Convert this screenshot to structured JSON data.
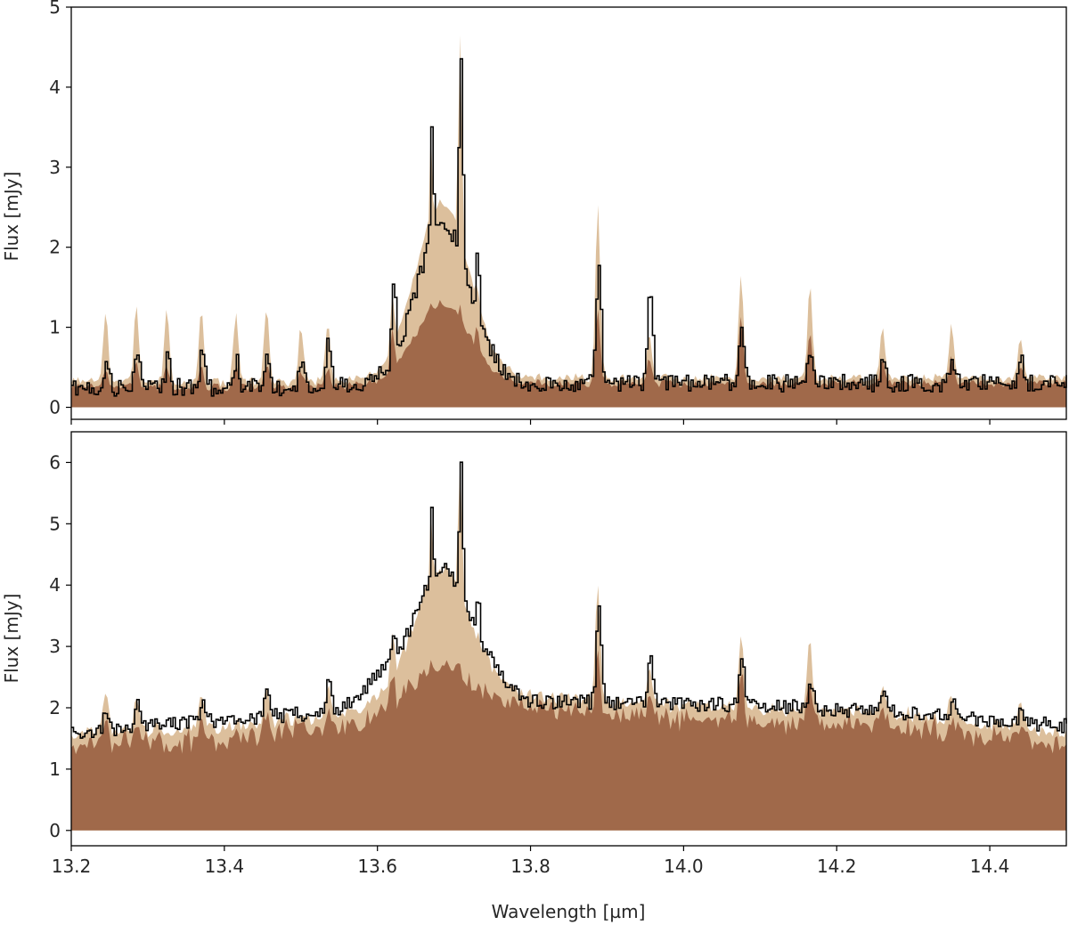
{
  "chart_data": [
    {
      "type": "area",
      "panel": "top",
      "ylabel": "Flux [mJy]",
      "xlabel": "",
      "xlim": [
        13.2,
        14.5
      ],
      "ylim": [
        -0.15,
        5.0
      ],
      "yticks": [
        0,
        1,
        2,
        3,
        4,
        5
      ],
      "xticks": [
        13.2,
        13.4,
        13.6,
        13.8,
        14.0,
        14.2,
        14.4
      ],
      "x_tick_labels_visible": false,
      "grid": false,
      "legend": "none",
      "colors": {
        "light_fill": "#dcbf9c",
        "dark_fill": "#a0694a",
        "line": "#000000"
      },
      "continuum_anchors": {
        "x": [
          13.2,
          13.5,
          13.6,
          13.7,
          13.8,
          14.0,
          14.2,
          14.5
        ],
        "y": [
          0.25,
          0.25,
          0.28,
          0.3,
          0.3,
          0.3,
          0.3,
          0.3
        ]
      },
      "band": {
        "center": 13.685,
        "width": 0.05,
        "light_peak": 2.2,
        "dark_peak": 1.0
      },
      "peaks": [
        {
          "x": 13.245,
          "light": 1.15,
          "dark": 0.5,
          "observed": 0.55
        },
        {
          "x": 13.285,
          "light": 1.2,
          "dark": 0.55,
          "observed": 0.7
        },
        {
          "x": 13.325,
          "light": 1.15,
          "dark": 0.5,
          "observed": 0.6
        },
        {
          "x": 13.37,
          "light": 1.15,
          "dark": 0.5,
          "observed": 0.75
        },
        {
          "x": 13.415,
          "light": 1.1,
          "dark": 0.5,
          "observed": 0.6
        },
        {
          "x": 13.455,
          "light": 1.2,
          "dark": 0.55,
          "observed": 0.7
        },
        {
          "x": 13.5,
          "light": 0.95,
          "dark": 0.45,
          "observed": 0.55
        },
        {
          "x": 13.535,
          "light": 1.0,
          "dark": 0.5,
          "observed": 0.8
        },
        {
          "x": 13.62,
          "light": 1.4,
          "dark": 1.0,
          "observed": 1.65
        },
        {
          "x": 13.67,
          "light": 3.5,
          "dark": 1.3,
          "observed": 3.6
        },
        {
          "x": 13.708,
          "light": 4.6,
          "dark": 1.3,
          "observed": 4.45
        },
        {
          "x": 13.73,
          "light": 1.5,
          "dark": 1.0,
          "observed": 2.0
        },
        {
          "x": 13.888,
          "light": 2.45,
          "dark": 1.2,
          "observed": 1.85
        },
        {
          "x": 13.955,
          "light": 0.85,
          "dark": 0.6,
          "observed": 1.6
        },
        {
          "x": 14.075,
          "light": 1.55,
          "dark": 1.1,
          "observed": 0.95
        },
        {
          "x": 14.165,
          "light": 1.45,
          "dark": 0.9,
          "observed": 0.75
        },
        {
          "x": 14.26,
          "light": 0.95,
          "dark": 0.6,
          "observed": 0.6
        },
        {
          "x": 14.35,
          "light": 0.95,
          "dark": 0.6,
          "observed": 0.55
        },
        {
          "x": 14.44,
          "light": 0.85,
          "dark": 0.55,
          "observed": 0.6
        }
      ]
    },
    {
      "type": "area",
      "panel": "bottom",
      "ylabel": "Flux [mJy]",
      "xlabel": "Wavelength [µm]",
      "xlim": [
        13.2,
        14.5
      ],
      "ylim": [
        -0.25,
        6.5
      ],
      "yticks": [
        0,
        1,
        2,
        3,
        4,
        5,
        6
      ],
      "xticks": [
        13.2,
        13.4,
        13.6,
        13.8,
        14.0,
        14.2,
        14.4
      ],
      "x_tick_labels": [
        "13.2",
        "13.4",
        "13.6",
        "13.8",
        "14.0",
        "14.2",
        "14.4"
      ],
      "grid": false,
      "legend": "none",
      "colors": {
        "light_fill": "#dcbf9c",
        "dark_fill": "#a0694a",
        "line": "#000000"
      },
      "continuum_anchors": {
        "x": [
          13.2,
          13.4,
          13.55,
          13.65,
          13.75,
          13.9,
          14.1,
          14.3,
          14.5
        ],
        "y": [
          1.5,
          1.6,
          1.8,
          2.2,
          2.2,
          2.0,
          1.9,
          1.8,
          1.5
        ]
      },
      "observed_continuum_anchors": {
        "x": [
          13.2,
          13.3,
          13.4,
          13.55,
          13.6,
          13.75,
          13.8,
          14.1,
          14.3,
          14.5
        ],
        "y": [
          1.6,
          1.7,
          1.8,
          1.95,
          2.5,
          2.4,
          2.1,
          2.05,
          1.9,
          1.7
        ]
      },
      "band": {
        "center": 13.685,
        "width": 0.05,
        "light_peak": 2.0,
        "dark_peak": 0.6
      },
      "peaks": [
        {
          "x": 13.245,
          "light": 2.2,
          "dark": 1.9,
          "observed": 2.0
        },
        {
          "x": 13.285,
          "light": 2.15,
          "dark": 1.9,
          "observed": 2.15
        },
        {
          "x": 13.37,
          "light": 2.2,
          "dark": 1.95,
          "observed": 2.1
        },
        {
          "x": 13.455,
          "light": 2.25,
          "dark": 2.0,
          "observed": 2.4
        },
        {
          "x": 13.535,
          "light": 2.3,
          "dark": 2.1,
          "observed": 2.5
        },
        {
          "x": 13.62,
          "light": 3.2,
          "dark": 2.7,
          "observed": 3.3
        },
        {
          "x": 13.67,
          "light": 5.2,
          "dark": 2.85,
          "observed": 5.2
        },
        {
          "x": 13.708,
          "light": 6.1,
          "dark": 2.85,
          "observed": 6.1
        },
        {
          "x": 13.73,
          "light": 2.9,
          "dark": 2.6,
          "observed": 3.9
        },
        {
          "x": 13.888,
          "light": 3.95,
          "dark": 3.0,
          "observed": 3.6
        },
        {
          "x": 13.955,
          "light": 2.5,
          "dark": 2.3,
          "observed": 2.9
        },
        {
          "x": 14.075,
          "light": 3.1,
          "dark": 2.75,
          "observed": 2.75
        },
        {
          "x": 14.165,
          "light": 3.1,
          "dark": 2.6,
          "observed": 2.4
        },
        {
          "x": 14.26,
          "light": 2.3,
          "dark": 2.1,
          "observed": 2.2
        },
        {
          "x": 14.35,
          "light": 2.2,
          "dark": 2.0,
          "observed": 2.1
        },
        {
          "x": 14.44,
          "light": 2.1,
          "dark": 1.9,
          "observed": 2.0
        }
      ]
    }
  ]
}
